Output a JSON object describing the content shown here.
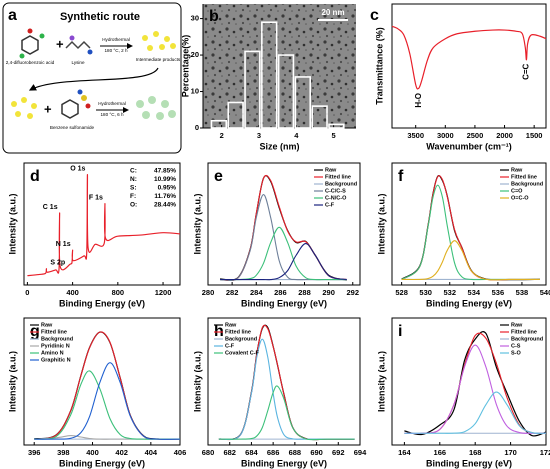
{
  "chart_data": [
    {
      "panel": "a",
      "type": "diagram",
      "title": "Synthetic route",
      "labels": [
        "2,4-difluorobenzoic acid",
        "Lysine",
        "Hydrothermal",
        "180 °C, 2 h",
        "Intermediate products",
        "Benzene sulfonamide",
        "Hydrothermal",
        "180 °C, 6 h"
      ]
    },
    {
      "panel": "b",
      "type": "histogram",
      "xlabel": "Size (nm)",
      "ylabel": "Percentage(%)",
      "scale_bar": "20 nm",
      "bins": [
        1.7,
        2.15,
        2.6,
        3.05,
        3.5,
        3.95,
        4.4,
        4.85,
        5.3
      ],
      "values": [
        2,
        7,
        21,
        29,
        20,
        14,
        6,
        1
      ],
      "color": "#ffffff",
      "xlim": [
        1.5,
        5.6
      ],
      "xticks": [
        2,
        3,
        4,
        5
      ],
      "ylim": [
        0,
        34
      ],
      "yticks": [
        0,
        10,
        20,
        30
      ]
    },
    {
      "panel": "c",
      "type": "line",
      "xlabel": "Wavenumber (cm⁻¹)",
      "ylabel": "Transmittance (%)",
      "x": [
        3900,
        3800,
        3700,
        3600,
        3500,
        3450,
        3400,
        3300,
        3200,
        3000,
        2800,
        2500,
        2200,
        2000,
        1800,
        1700,
        1650,
        1630,
        1610,
        1550,
        1400,
        1300
      ],
      "series": [
        {
          "color": "#e8202a",
          "values": [
            82,
            80,
            75,
            60,
            35,
            32,
            38,
            55,
            65,
            72,
            76,
            78,
            79,
            79,
            78,
            76,
            65,
            55,
            68,
            75,
            74,
            72
          ]
        }
      ],
      "annotations": [
        {
          "text": "H-O",
          "x": 3450
        },
        {
          "text": "C=C",
          "x": 1630
        }
      ],
      "xlim": [
        3900,
        1300
      ],
      "xticks": [
        3500,
        3000,
        2500,
        2000,
        1500
      ],
      "ylim": [
        0,
        100
      ]
    },
    {
      "panel": "d",
      "type": "line",
      "xlabel": "Binding Energy (eV)",
      "ylabel": "Intensity (a.u.)",
      "x": [
        0,
        100,
        160,
        168,
        176,
        250,
        280,
        285,
        290,
        380,
        395,
        400,
        405,
        500,
        525,
        531,
        537,
        600,
        680,
        686,
        692,
        800,
        1000,
        1200,
        1350
      ],
      "series": [
        {
          "color": "#e8202a",
          "values": [
            8,
            9,
            10,
            14,
            11,
            13,
            14,
            62,
            16,
            18,
            20,
            30,
            21,
            25,
            28,
            95,
            32,
            35,
            36,
            70,
            40,
            42,
            43,
            45,
            44
          ]
        }
      ],
      "annotations": [
        {
          "text": "S 2p",
          "x": 168
        },
        {
          "text": "C 1s",
          "x": 285
        },
        {
          "text": "N 1s",
          "x": 400
        },
        {
          "text": "O 1s",
          "x": 531
        },
        {
          "text": "F 1s",
          "x": 686
        }
      ],
      "composition": [
        {
          "element": "C:",
          "value": 47.85,
          "label": "47.85%"
        },
        {
          "element": "N:",
          "value": 10.99,
          "label": "10.99%"
        },
        {
          "element": "S:",
          "value": 0.95,
          "label": "0.95%"
        },
        {
          "element": "F:",
          "value": 11.76,
          "label": "11.76%"
        },
        {
          "element": "O:",
          "value": 28.44,
          "label": "28.44%"
        }
      ],
      "xlim": [
        -30,
        1350
      ],
      "xticks": [
        0,
        400,
        800,
        1200
      ],
      "ylim": [
        0,
        105
      ]
    },
    {
      "panel": "e",
      "type": "line",
      "xlabel": "Binding Energy (eV)",
      "ylabel": "Intensity (a.u.)",
      "legend": "upper right",
      "x": [
        281,
        282.5,
        283.5,
        284,
        284.6,
        285.2,
        285.9,
        286.6,
        287.3,
        288.1,
        288.9,
        290,
        291.5
      ],
      "series": [
        {
          "name": "Raw",
          "color": "#000000",
          "values": [
            5.5,
            7,
            33,
            65,
            98,
            95,
            71,
            50,
            39,
            40,
            27,
            9,
            4.5
          ]
        },
        {
          "name": "Fitted line",
          "color": "#e8202a",
          "values": [
            5,
            6.6,
            32.7,
            65.6,
            97.9,
            95.8,
            72.1,
            49.5,
            39.6,
            39.7,
            27.2,
            8.6,
            5
          ]
        },
        {
          "name": "Background",
          "color": "#9fb4d0",
          "values": [
            5,
            5,
            5,
            5,
            5,
            5,
            5,
            5,
            5,
            5,
            5,
            5,
            5
          ]
        },
        {
          "name": "C-C/C-S",
          "color": "#6d7f99",
          "values": [
            5,
            6.6,
            31.8,
            61.7,
            83,
            61.7,
            22.4,
            7.2,
            5,
            5,
            5,
            5,
            5
          ]
        },
        {
          "name": "C-N/C-O",
          "color": "#3cc07a",
          "values": [
            5,
            5,
            5.9,
            8.9,
            19.9,
            39.1,
            53,
            39.1,
            17.4,
            6.7,
            5,
            5,
            5
          ]
        },
        {
          "name": "C-F",
          "color": "#1a237e",
          "values": [
            5,
            5,
            5,
            5,
            5,
            5,
            6.7,
            13.2,
            27.2,
            38,
            27.2,
            8.6,
            5
          ]
        }
      ],
      "xlim": [
        280,
        292.6
      ],
      "xticks": [
        280,
        282,
        284,
        286,
        288,
        290,
        292
      ],
      "ylim": [
        0,
        112
      ]
    },
    {
      "panel": "f",
      "type": "line",
      "xlabel": "Binding Energy (eV)",
      "ylabel": "Intensity (a.u.)",
      "legend": "upper right",
      "x": [
        528,
        529.5,
        530.2,
        530.6,
        531,
        531.4,
        531.8,
        532.4,
        533,
        533.8,
        535,
        537,
        539.5
      ],
      "series": [
        {
          "name": "Raw",
          "color": "#000000",
          "values": [
            5.3,
            17,
            54,
            82,
            98,
            94,
            80,
            49,
            34,
            13,
            5.5,
            4.8,
            5.2
          ]
        },
        {
          "name": "Fitted line",
          "color": "#e8202a",
          "values": [
            5,
            16.5,
            53.8,
            81.6,
            97.6,
            94.8,
            79.4,
            49.9,
            33.8,
            12.6,
            5.2,
            5,
            5
          ]
        },
        {
          "name": "Background",
          "color": "#9fb4d0",
          "values": [
            5,
            5,
            5,
            5,
            5,
            5,
            5,
            5,
            5,
            5,
            5,
            5,
            5
          ]
        },
        {
          "name": "C=O",
          "color": "#3cc07a",
          "values": [
            5,
            16.5,
            53,
            78.8,
            90,
            78.8,
            53,
            19.9,
            7.4,
            5,
            5,
            5,
            5
          ]
        },
        {
          "name": "O=C-O",
          "color": "#e0b020",
          "values": [
            5,
            5,
            5.8,
            7.8,
            12.6,
            21,
            31.4,
            40,
            31.4,
            12.6,
            5.2,
            5,
            5
          ]
        }
      ],
      "xlim": [
        527.2,
        540
      ],
      "xticks": [
        528,
        530,
        532,
        534,
        536,
        538,
        540
      ],
      "ylim": [
        0,
        110
      ]
    },
    {
      "panel": "g",
      "type": "line",
      "xlabel": "Binding Energy (eV)",
      "ylabel": "Intensity (a.u.)",
      "legend": "upper left",
      "x": [
        396,
        397.5,
        398.5,
        399.2,
        399.8,
        400.5,
        401.2,
        401.9,
        402.6,
        403.5,
        404.5,
        406
      ],
      "series": [
        {
          "name": "Raw",
          "color": "#000000",
          "values": [
            5.2,
            8.5,
            29,
            59,
            83,
            96,
            87,
            57,
            25,
            7.8,
            5.1,
            5
          ]
        },
        {
          "name": "Fitted line",
          "color": "#e8202a",
          "values": [
            5,
            8.3,
            29.2,
            58.8,
            82.8,
            96,
            87.3,
            56.9,
            24.8,
            7.5,
            5,
            5
          ]
        },
        {
          "name": "Background",
          "color": "#9fb4d0",
          "values": [
            5,
            5,
            5,
            5,
            5,
            5,
            5,
            5,
            5,
            5,
            5,
            5
          ]
        },
        {
          "name": "Pyridinic N",
          "color": "#a8a8a8",
          "values": [
            5,
            6.1,
            8,
            6.8,
            5.5,
            5,
            5,
            5,
            5,
            5,
            5,
            5
          ]
        },
        {
          "name": "Amino N",
          "color": "#3cc07a",
          "values": [
            5,
            7.2,
            25.5,
            51.5,
            63,
            47.9,
            22.3,
            8.8,
            5.5,
            5,
            5,
            5
          ]
        },
        {
          "name": "Graphitic N",
          "color": "#2060d0",
          "values": [
            5,
            5,
            5.7,
            10.5,
            24.3,
            53.1,
            70,
            53.1,
            24.3,
            7.5,
            5,
            5
          ]
        }
      ],
      "xlim": [
        395.3,
        406
      ],
      "xticks": [
        396,
        398,
        400,
        402,
        404,
        406
      ],
      "ylim": [
        0,
        108
      ]
    },
    {
      "panel": "h",
      "type": "line",
      "xlabel": "Binding Energy (eV)",
      "ylabel": "Intensity (a.u.)",
      "legend": "upper left",
      "x": [
        681,
        683,
        684,
        684.5,
        685,
        685.5,
        686,
        686.4,
        687,
        687.8,
        689,
        691,
        693.5
      ],
      "series": [
        {
          "name": "Raw",
          "color": "#000000",
          "values": [
            5,
            9,
            45,
            78,
            99,
            100,
            84,
            68,
            43,
            15,
            5.5,
            5,
            5
          ]
        },
        {
          "name": "Fitted line",
          "color": "#e8202a",
          "values": [
            5,
            8.7,
            44.5,
            77.7,
            99.8,
            99,
            83.7,
            68.5,
            42.7,
            15,
            5.4,
            5,
            5
          ]
        },
        {
          "name": "Background",
          "color": "#9fb4d0",
          "values": [
            5,
            5,
            5,
            5,
            5,
            5,
            5,
            5,
            5,
            5,
            5,
            5,
            5
          ]
        },
        {
          "name": "C-F",
          "color": "#5ab4e0",
          "values": [
            5,
            8.7,
            44,
            75,
            90,
            75,
            44,
            23.5,
            8.7,
            5.2,
            5,
            5,
            5
          ]
        },
        {
          "name": "Covalent C-F",
          "color": "#3cc07a",
          "values": [
            5,
            5,
            5.5,
            7.7,
            14.8,
            29,
            44.7,
            50,
            39,
            14.8,
            5.2,
            5,
            5
          ]
        }
      ],
      "xlim": [
        680,
        694
      ],
      "xticks": [
        680,
        682,
        684,
        686,
        688,
        690,
        692,
        694
      ],
      "ylim": [
        0,
        108
      ]
    },
    {
      "panel": "i",
      "type": "line",
      "xlabel": "Binding Energy (eV)",
      "ylabel": "Intensity (a.u.)",
      "legend": "upper right",
      "x": [
        164,
        165,
        166,
        166.8,
        167.4,
        168,
        168.6,
        169.2,
        169.8,
        170.5,
        171.2,
        172
      ],
      "series": [
        {
          "name": "Raw",
          "color": "#000000",
          "values": [
            12,
            9,
            17,
            30,
            72,
            90,
            95,
            66,
            44,
            20,
            8,
            11
          ]
        },
        {
          "name": "Fitted line",
          "color": "#e8202a",
          "values": [
            10,
            10,
            13.3,
            34.4,
            67.9,
            93.1,
            90.8,
            69.3,
            40.2,
            16.9,
            10.6,
            10
          ]
        },
        {
          "name": "Background",
          "color": "#9fb4d0",
          "values": [
            10,
            10,
            10,
            10,
            10,
            10,
            10,
            10,
            10,
            10,
            10,
            10
          ]
        },
        {
          "name": "C-S",
          "color": "#c060e0",
          "values": [
            10,
            10,
            13.3,
            34.3,
            66.6,
            85,
            66.6,
            34.3,
            16,
            10.6,
            10,
            10
          ]
        },
        {
          "name": "S-O",
          "color": "#60c0e0",
          "values": [
            10,
            10,
            10,
            10.1,
            11.3,
            18.1,
            34.2,
            45,
            34.2,
            16.3,
            10.6,
            10
          ]
        }
      ],
      "xlim": [
        163.3,
        172
      ],
      "xticks": [
        164,
        166,
        168,
        170,
        172
      ],
      "ylim": [
        0,
        108
      ]
    }
  ]
}
